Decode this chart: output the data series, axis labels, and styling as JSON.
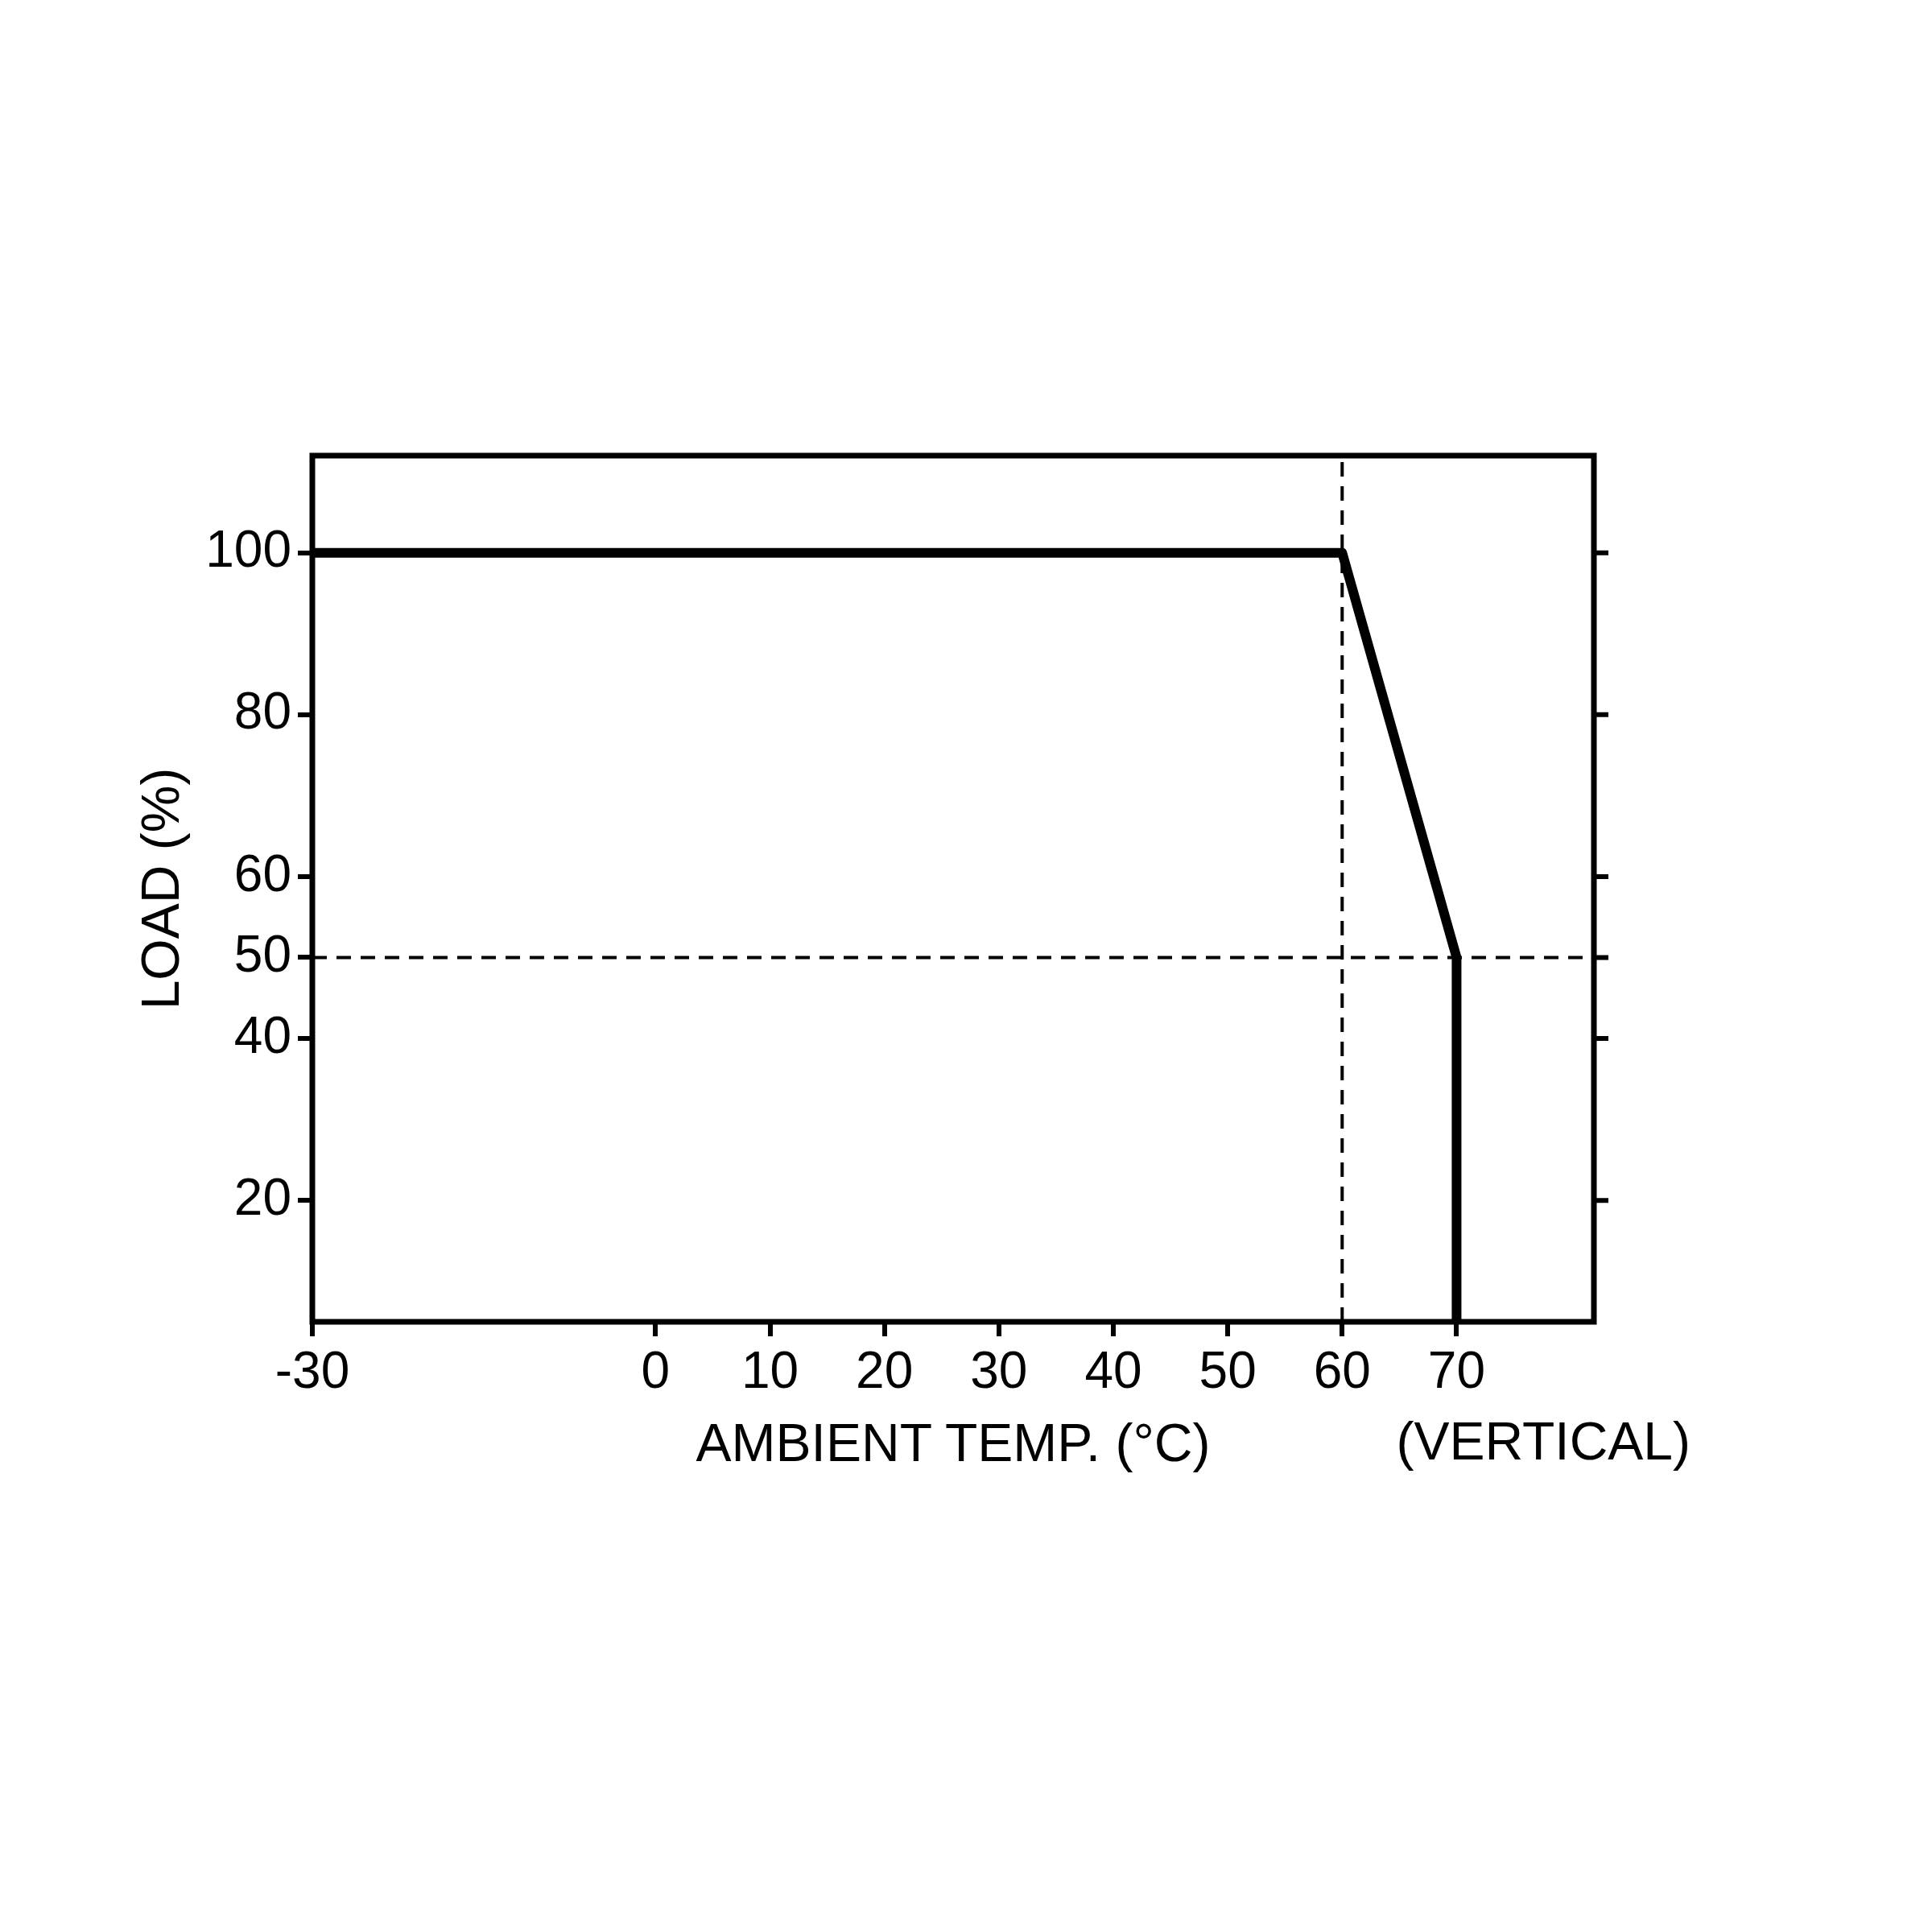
{
  "chart_data": {
    "type": "line",
    "xlabel": "AMBIENT TEMP. (°C)",
    "ylabel": "LOAD (%)",
    "x": [
      -30,
      60,
      70,
      70
    ],
    "series": [
      {
        "color": "#000000",
        "values": [
          100,
          100,
          50,
          5
        ]
      }
    ],
    "xlim": [
      -30,
      82
    ],
    "xticks": [
      -30,
      0,
      10,
      20,
      30,
      40,
      50,
      60,
      70
    ],
    "ylim": [
      5,
      112
    ],
    "yticks": [
      20,
      40,
      50,
      60,
      80,
      100
    ],
    "grid": false,
    "legend": false,
    "marker": "none",
    "line_style": "solid",
    "ref_lines": [
      {
        "axis": "x",
        "value": 60,
        "line_style": "dashed",
        "color": "#000000"
      },
      {
        "axis": "y",
        "value": 50,
        "line_style": "dashed",
        "color": "#000000"
      }
    ],
    "annotations": [
      "(VERTICAL)"
    ]
  }
}
